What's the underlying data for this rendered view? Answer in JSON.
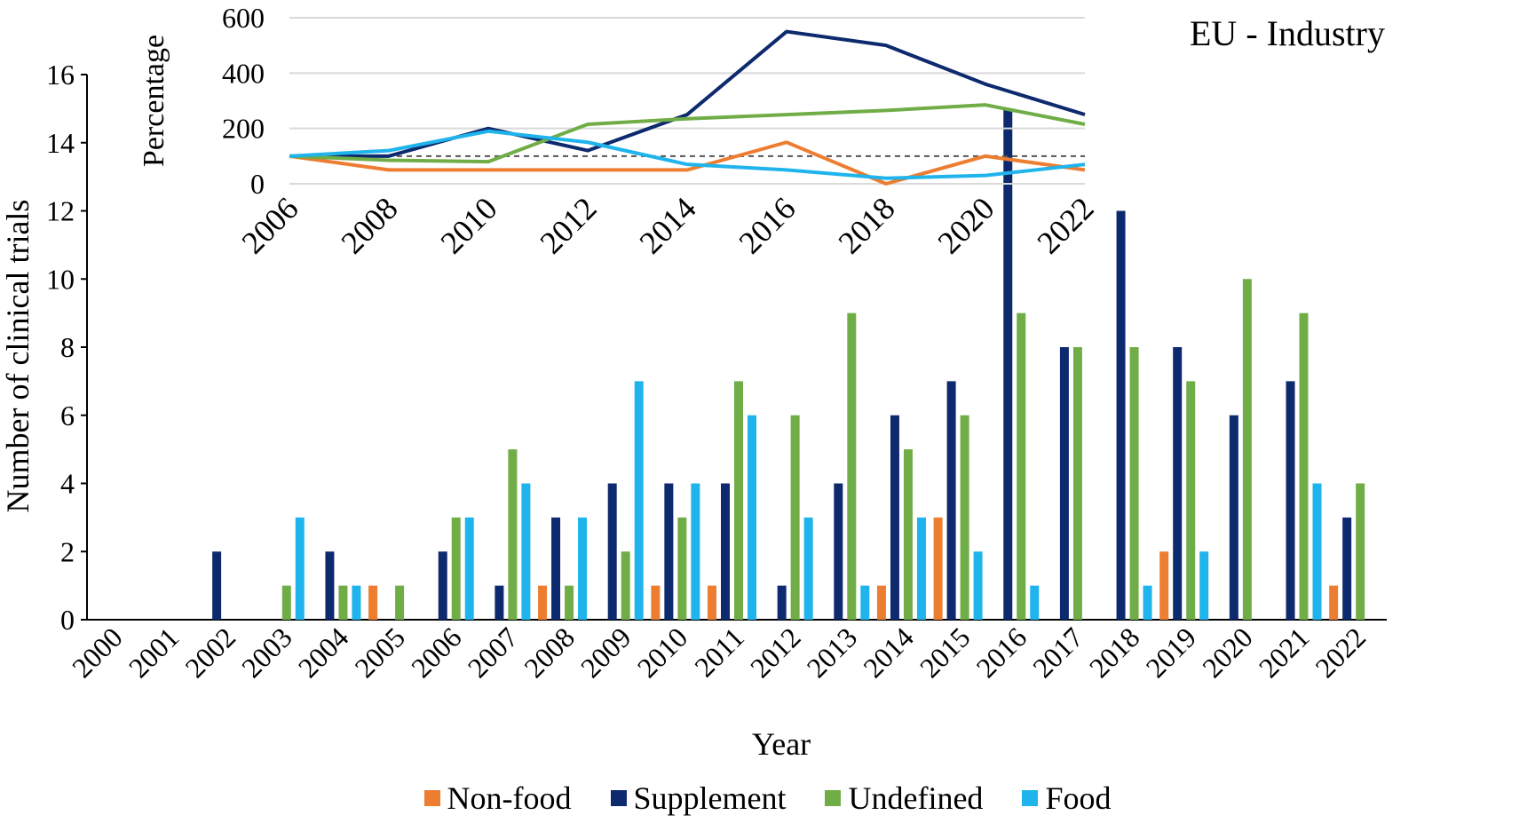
{
  "chart_data": [
    {
      "type": "bar",
      "title": "EU - Industry",
      "xlabel": "Year",
      "ylabel": "Number of clinical trials",
      "ylim": [
        0,
        16
      ],
      "yticks": [
        "0",
        "2",
        "4",
        "6",
        "8",
        "10",
        "12",
        "14",
        "16"
      ],
      "categories": [
        "2000",
        "2001",
        "2002",
        "2003",
        "2004",
        "2005",
        "2006",
        "2007",
        "2008",
        "2009",
        "2010",
        "2011",
        "2012",
        "2013",
        "2014",
        "2015",
        "2016",
        "2017",
        "2018",
        "2019",
        "2020",
        "2021",
        "2022"
      ],
      "series": [
        {
          "name": "Non-food",
          "color": "#ED7D31",
          "values": [
            0,
            0,
            0,
            0,
            0,
            1,
            0,
            0,
            1,
            0,
            1,
            1,
            0,
            0,
            1,
            3,
            0,
            0,
            0,
            2,
            0,
            0,
            1
          ]
        },
        {
          "name": "Supplement",
          "color": "#0E2A6E",
          "values": [
            0,
            0,
            2,
            0,
            2,
            0,
            2,
            1,
            3,
            4,
            4,
            4,
            1,
            4,
            6,
            7,
            15,
            8,
            12,
            8,
            6,
            7,
            3
          ]
        },
        {
          "name": "Undefined",
          "color": "#70AD47",
          "values": [
            0,
            0,
            0,
            1,
            1,
            1,
            3,
            5,
            1,
            2,
            3,
            7,
            6,
            9,
            5,
            6,
            9,
            8,
            8,
            7,
            10,
            9,
            4
          ]
        },
        {
          "name": "Food",
          "color": "#1FB4EC",
          "values": [
            0,
            0,
            0,
            3,
            1,
            0,
            3,
            4,
            3,
            7,
            4,
            6,
            3,
            1,
            3,
            2,
            1,
            0,
            1,
            2,
            0,
            4,
            0
          ]
        }
      ],
      "legend_position": "bottom"
    },
    {
      "type": "line",
      "ylabel": "Percentage",
      "ylim": [
        0,
        600
      ],
      "yticks": [
        "0",
        "200",
        "400",
        "600"
      ],
      "grid": true,
      "baseline": 100,
      "x": [
        "2006",
        "2008",
        "2010",
        "2012",
        "2014",
        "2016",
        "2018",
        "2020",
        "2022"
      ],
      "series": [
        {
          "name": "Non-food",
          "color": "#ED7D31",
          "values": [
            100,
            50,
            50,
            50,
            50,
            150,
            0,
            100,
            50
          ]
        },
        {
          "name": "Supplement",
          "color": "#0E2A6E",
          "values": [
            100,
            100,
            200,
            120,
            250,
            550,
            500,
            360,
            250
          ]
        },
        {
          "name": "Undefined",
          "color": "#70AD47",
          "values": [
            100,
            85,
            80,
            215,
            235,
            250,
            265,
            285,
            215
          ]
        },
        {
          "name": "Food",
          "color": "#1FB4EC",
          "values": [
            100,
            120,
            190,
            150,
            70,
            50,
            20,
            30,
            70
          ]
        }
      ]
    }
  ]
}
